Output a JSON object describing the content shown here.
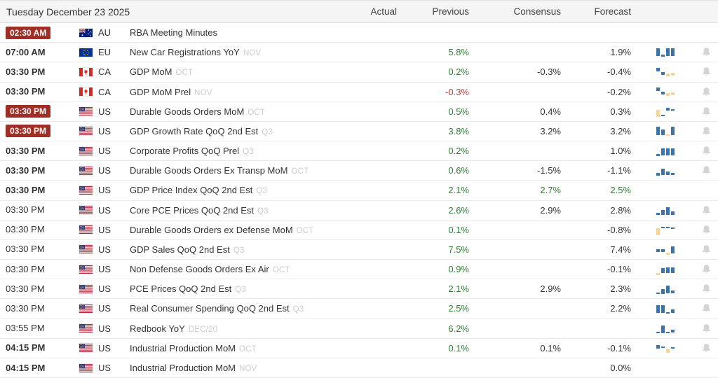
{
  "header": {
    "date_title": "Tuesday December 23 2025",
    "col_actual": "Actual",
    "col_previous": "Previous",
    "col_consensus": "Consensus",
    "col_forecast": "Forecast"
  },
  "colors": {
    "badge_red": "#a02e26",
    "value_green": "#2f7d33",
    "value_red": "#b0413a",
    "value_dark": "#333333",
    "spark_blue": "#3b74ab",
    "spark_yellow": "#f2d59b",
    "bell_gray": "#d4d4d4"
  },
  "rows": [
    {
      "time": "02:30 AM",
      "time_style": "alert",
      "flag": "au",
      "country": "AU",
      "event": "RBA Meeting Minutes",
      "ref": "",
      "actual": "",
      "previous": "",
      "previous_color": "dark",
      "consensus": "",
      "consensus_color": "dark",
      "forecast": "",
      "forecast_color": "dark",
      "spark": null,
      "bell": false
    },
    {
      "time": "07:00 AM",
      "time_style": "bold",
      "flag": "eu",
      "country": "EU",
      "event": "New Car Registrations YoY",
      "ref": "NOV",
      "actual": "",
      "previous": "5.8%",
      "previous_color": "green",
      "consensus": "",
      "consensus_color": "dark",
      "forecast": "1.9%",
      "forecast_color": "dark",
      "spark": [
        [
          2,
          11,
          "b"
        ],
        [
          11,
          3,
          "b"
        ],
        [
          2,
          11,
          "b"
        ],
        [
          2,
          11,
          "b"
        ]
      ],
      "bell": true
    },
    {
      "time": "03:30 PM",
      "time_style": "bold",
      "flag": "ca",
      "country": "CA",
      "event": "GDP MoM",
      "ref": "OCT",
      "actual": "",
      "previous": "0.2%",
      "previous_color": "green",
      "consensus": "-0.3%",
      "consensus_color": "dark",
      "forecast": "-0.4%",
      "forecast_color": "dark",
      "spark": [
        [
          2,
          5,
          "b"
        ],
        [
          8,
          4,
          "b"
        ],
        [
          10,
          4,
          "y"
        ],
        [
          9,
          4,
          "y"
        ]
      ],
      "bell": true
    },
    {
      "time": "03:30 PM",
      "time_style": "bold",
      "flag": "ca",
      "country": "CA",
      "event": "GDP MoM Prel",
      "ref": "NOV",
      "actual": "",
      "previous": "-0.3%",
      "previous_color": "red",
      "consensus": "",
      "consensus_color": "dark",
      "forecast": "-0.2%",
      "forecast_color": "dark",
      "spark": [
        [
          2,
          5,
          "b"
        ],
        [
          8,
          4,
          "b"
        ],
        [
          10,
          4,
          "y"
        ],
        [
          9,
          4,
          "y"
        ]
      ],
      "bell": true
    },
    {
      "time": "03:30 PM",
      "time_style": "alert",
      "flag": "us",
      "country": "US",
      "event": "Durable Goods Orders MoM",
      "ref": "OCT",
      "actual": "",
      "previous": "0.5%",
      "previous_color": "green",
      "consensus": "0.4%",
      "consensus_color": "dark",
      "forecast": "0.3%",
      "forecast_color": "dark",
      "spark": [
        [
          6,
          10,
          "y"
        ],
        [
          13,
          2,
          "b"
        ],
        [
          3,
          4,
          "b"
        ],
        [
          5,
          2,
          "b"
        ]
      ],
      "bell": true
    },
    {
      "time": "03:30 PM",
      "time_style": "alert",
      "flag": "us",
      "country": "US",
      "event": "GDP Growth Rate QoQ 2nd Est",
      "ref": "Q3",
      "actual": "",
      "previous": "3.8%",
      "previous_color": "green",
      "consensus": "3.2%",
      "consensus_color": "dark",
      "forecast": "3.2%",
      "forecast_color": "dark",
      "spark": [
        [
          2,
          12,
          "b"
        ],
        [
          6,
          8,
          "b"
        ],
        [
          13,
          2,
          "y"
        ],
        [
          2,
          12,
          "b"
        ]
      ],
      "bell": true
    },
    {
      "time": "03:30 PM",
      "time_style": "bold",
      "flag": "us",
      "country": "US",
      "event": "Corporate Profits QoQ Prel",
      "ref": "Q3",
      "actual": "",
      "previous": "0.2%",
      "previous_color": "green",
      "consensus": "",
      "consensus_color": "dark",
      "forecast": "1.0%",
      "forecast_color": "dark",
      "spark": [
        [
          12,
          3,
          "b"
        ],
        [
          4,
          10,
          "b"
        ],
        [
          4,
          10,
          "b"
        ],
        [
          4,
          10,
          "b"
        ]
      ],
      "bell": true
    },
    {
      "time": "03:30 PM",
      "time_style": "bold",
      "flag": "us",
      "country": "US",
      "event": "Durable Goods Orders Ex Transp MoM",
      "ref": "OCT",
      "actual": "",
      "previous": "0.6%",
      "previous_color": "green",
      "consensus": "-1.5%",
      "consensus_color": "dark",
      "forecast": "-1.1%",
      "forecast_color": "dark",
      "spark": [
        [
          11,
          4,
          "b"
        ],
        [
          5,
          9,
          "b"
        ],
        [
          9,
          5,
          "b"
        ],
        [
          11,
          3,
          "b"
        ]
      ],
      "bell": true
    },
    {
      "time": "03:30 PM",
      "time_style": "bold",
      "flag": "us",
      "country": "US",
      "event": "GDP Price Index QoQ 2nd Est",
      "ref": "Q3",
      "actual": "",
      "previous": "2.1%",
      "previous_color": "green",
      "consensus": "2.7%",
      "consensus_color": "green",
      "forecast": "2.5%",
      "forecast_color": "green",
      "spark": null,
      "bell": false
    },
    {
      "time": "03:30 PM",
      "time_style": "normal",
      "flag": "us",
      "country": "US",
      "event": "Core PCE Prices QoQ 2nd Est",
      "ref": "Q3",
      "actual": "",
      "previous": "2.6%",
      "previous_color": "green",
      "consensus": "2.9%",
      "consensus_color": "dark",
      "forecast": "2.8%",
      "forecast_color": "dark",
      "spark": [
        [
          12,
          3,
          "b"
        ],
        [
          8,
          7,
          "b"
        ],
        [
          4,
          11,
          "b"
        ],
        [
          10,
          5,
          "b"
        ]
      ],
      "bell": true
    },
    {
      "time": "03:30 PM",
      "time_style": "normal",
      "flag": "us",
      "country": "US",
      "event": "Durable Goods Orders ex Defense MoM",
      "ref": "OCT",
      "actual": "",
      "previous": "0.1%",
      "previous_color": "green",
      "consensus": "",
      "consensus_color": "dark",
      "forecast": "-0.8%",
      "forecast_color": "dark",
      "spark": [
        [
          6,
          10,
          "y"
        ],
        [
          4,
          2,
          "b"
        ],
        [
          4,
          2,
          "b"
        ],
        [
          5,
          2,
          "b"
        ]
      ],
      "bell": true
    },
    {
      "time": "03:30 PM",
      "time_style": "normal",
      "flag": "us",
      "country": "US",
      "event": "GDP Sales QoQ 2nd Est",
      "ref": "Q3",
      "actual": "",
      "previous": "7.5%",
      "previous_color": "green",
      "consensus": "",
      "consensus_color": "dark",
      "forecast": "7.4%",
      "forecast_color": "dark",
      "spark": [
        [
          8,
          4,
          "b"
        ],
        [
          8,
          4,
          "b"
        ],
        [
          13,
          3,
          "y"
        ],
        [
          4,
          10,
          "b"
        ]
      ],
      "bell": true
    },
    {
      "time": "03:30 PM",
      "time_style": "normal",
      "flag": "us",
      "country": "US",
      "event": "Non Defense Goods Orders Ex Air",
      "ref": "OCT",
      "actual": "",
      "previous": "0.9%",
      "previous_color": "green",
      "consensus": "",
      "consensus_color": "dark",
      "forecast": "-0.1%",
      "forecast_color": "dark",
      "spark": [
        [
          13,
          3,
          "y"
        ],
        [
          6,
          7,
          "b"
        ],
        [
          5,
          8,
          "b"
        ],
        [
          5,
          8,
          "b"
        ]
      ],
      "bell": true
    },
    {
      "time": "03:30 PM",
      "time_style": "normal",
      "flag": "us",
      "country": "US",
      "event": "PCE Prices QoQ 2nd Est",
      "ref": "Q3",
      "actual": "",
      "previous": "2.1%",
      "previous_color": "green",
      "consensus": "2.9%",
      "consensus_color": "dark",
      "forecast": "2.3%",
      "forecast_color": "dark",
      "spark": [
        [
          13,
          2,
          "b"
        ],
        [
          8,
          7,
          "b"
        ],
        [
          3,
          11,
          "b"
        ],
        [
          10,
          4,
          "b"
        ]
      ],
      "bell": true
    },
    {
      "time": "03:30 PM",
      "time_style": "normal",
      "flag": "us",
      "country": "US",
      "event": "Real Consumer Spending QoQ 2nd Est",
      "ref": "Q3",
      "actual": "",
      "previous": "2.5%",
      "previous_color": "green",
      "consensus": "",
      "consensus_color": "dark",
      "forecast": "2.2%",
      "forecast_color": "dark",
      "spark": [
        [
          3,
          11,
          "b"
        ],
        [
          3,
          11,
          "b"
        ],
        [
          13,
          2,
          "b"
        ],
        [
          9,
          5,
          "b"
        ]
      ],
      "bell": true
    },
    {
      "time": "03:55 PM",
      "time_style": "normal",
      "flag": "us",
      "country": "US",
      "event": "Redbook YoY",
      "ref": "DEC/20",
      "actual": "",
      "previous": "6.2%",
      "previous_color": "green",
      "consensus": "",
      "consensus_color": "dark",
      "forecast": "",
      "forecast_color": "dark",
      "spark": [
        [
          13,
          2,
          "b"
        ],
        [
          4,
          11,
          "b"
        ],
        [
          13,
          2,
          "b"
        ],
        [
          10,
          4,
          "b"
        ]
      ],
      "bell": true
    },
    {
      "time": "04:15 PM",
      "time_style": "bold",
      "flag": "us",
      "country": "US",
      "event": "Industrial Production MoM",
      "ref": "OCT",
      "actual": "",
      "previous": "0.1%",
      "previous_color": "green",
      "consensus": "0.1%",
      "consensus_color": "dark",
      "forecast": "-0.1%",
      "forecast_color": "dark",
      "spark": [
        [
          4,
          5,
          "b"
        ],
        [
          6,
          2,
          "b"
        ],
        [
          10,
          5,
          "y"
        ],
        [
          7,
          2,
          "b"
        ]
      ],
      "bell": true
    },
    {
      "time": "04:15 PM",
      "time_style": "bold",
      "flag": "us",
      "country": "US",
      "event": "Industrial Production MoM",
      "ref": "NOV",
      "actual": "",
      "previous": "",
      "previous_color": "dark",
      "consensus": "",
      "consensus_color": "dark",
      "forecast": "0.0%",
      "forecast_color": "dark",
      "spark": null,
      "bell": false
    }
  ]
}
